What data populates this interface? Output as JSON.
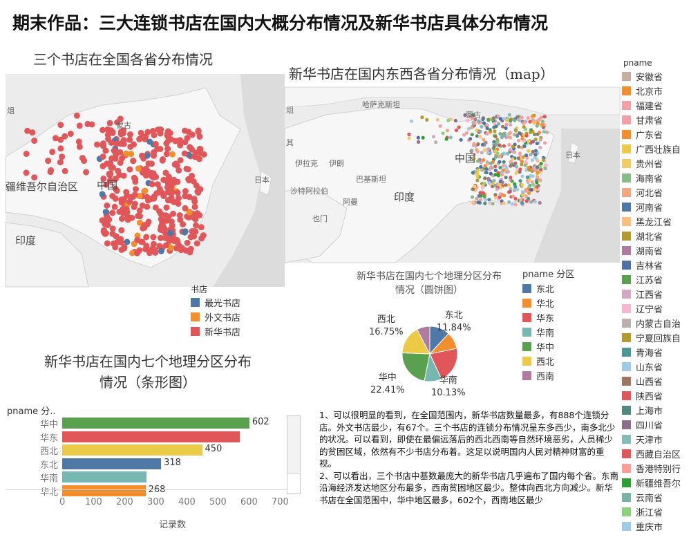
{
  "page": {
    "title": "期末作品：三大连锁书店在国内大概分布情况及新华书店具体分布情况"
  },
  "map1": {
    "title": "三个书店在全国各省分布情况",
    "labels": [
      "疆维吾尔自治区",
      "中国",
      "蒙古",
      "印度",
      "日本",
      "俎"
    ],
    "legend": {
      "title": "书店",
      "items": [
        {
          "label": "最光书店",
          "color": "#4e79a7"
        },
        {
          "label": "外文书店",
          "color": "#f28e2b"
        },
        {
          "label": "新华书店",
          "color": "#e15759"
        }
      ]
    }
  },
  "map2": {
    "title": "新华书店在国内东西各省分布情况（map）",
    "labels": [
      "哈萨克斯坦",
      "蒙古",
      "中国",
      "印度",
      "日本",
      "伊拉克",
      "伊朗",
      "巴基斯坦",
      "沙特阿拉伯",
      "也门",
      "阿曼",
      "其",
      "俎"
    ]
  },
  "province_legend": {
    "title": "pname",
    "items": [
      {
        "label": "安徽省",
        "color": "#c9aea0"
      },
      {
        "label": "北京市",
        "color": "#f28e2b"
      },
      {
        "label": "福建省",
        "color": "#f2a0a6"
      },
      {
        "label": "甘肃省",
        "color": "#f2a0a6"
      },
      {
        "label": "广东省",
        "color": "#f28e2b"
      },
      {
        "label": "广西壮族自",
        "color": "#edc948"
      },
      {
        "label": "贵州省",
        "color": "#f1ce63"
      },
      {
        "label": "海南省",
        "color": "#86bc86"
      },
      {
        "label": "河北省",
        "color": "#f4a582"
      },
      {
        "label": "河南省",
        "color": "#4e79a7"
      },
      {
        "label": "黑龙江省",
        "color": "#ffbe7d"
      },
      {
        "label": "湖北省",
        "color": "#b6992d"
      },
      {
        "label": "湖南省",
        "color": "#b07aa1"
      },
      {
        "label": "吉林省",
        "color": "#4e6fa7"
      },
      {
        "label": "江苏省",
        "color": "#59a14f"
      },
      {
        "label": "江西省",
        "color": "#d4a6c8"
      },
      {
        "label": "辽宁省",
        "color": "#f7b6d2"
      },
      {
        "label": "内蒙古自治",
        "color": "#bab0ac"
      },
      {
        "label": "宁夏回族自",
        "color": "#b6992d"
      },
      {
        "label": "青海省",
        "color": "#499894"
      },
      {
        "label": "山东省",
        "color": "#a0cbe8"
      },
      {
        "label": "山西省",
        "color": "#9d7660"
      },
      {
        "label": "陕西省",
        "color": "#e15759"
      },
      {
        "label": "上海市",
        "color": "#4e8a7e"
      },
      {
        "label": "四川省",
        "color": "#8c6d8c"
      },
      {
        "label": "天津市",
        "color": "#86bcb6"
      },
      {
        "label": "西藏自治区",
        "color": "#e15759"
      },
      {
        "label": "香港特别行",
        "color": "#ff9d9a"
      },
      {
        "label": "新疆维吾尔",
        "color": "#2ca02c"
      },
      {
        "label": "云南省",
        "color": "#79b2a6"
      },
      {
        "label": "浙江省",
        "color": "#8cd17d"
      },
      {
        "label": "重庆市",
        "color": "#a0cbe8"
      }
    ]
  },
  "pie": {
    "title_line1": "新华书店在国内七个地理分区分布",
    "title_line2": "情况（圆饼图）",
    "legend_title": "pname 分区",
    "labels": {
      "dongbei_name": "东北",
      "dongbei_pct": "11.84%",
      "xibei_name": "西北",
      "xibei_pct": "16.75%",
      "huazhong_name": "华中",
      "huazhong_pct": "22.41%",
      "huanan_name": "华南",
      "huanan_pct": "10.13%"
    }
  },
  "bar": {
    "title_line1": "新华书店在国内七个地理分区分布",
    "title_line2": "情况（条形图）",
    "header": "pname 分..",
    "xlabel": "记录数"
  },
  "chart_data": [
    {
      "type": "bar",
      "orientation": "horizontal",
      "title": "新华书店在国内七个地理分区分布情况（条形图）",
      "xlabel": "记录数",
      "ylabel": "pname 分..",
      "xlim": [
        0,
        700
      ],
      "xticks": [
        0,
        100,
        200,
        300,
        400,
        500,
        600,
        700
      ],
      "categories": [
        "华中",
        "华东",
        "西北",
        "东北",
        "华南",
        "华北"
      ],
      "values": [
        602,
        570,
        450,
        318,
        272,
        268
      ],
      "value_labels": [
        "602",
        "",
        "450",
        "318",
        "",
        "268"
      ],
      "colors": [
        "#59a14f",
        "#e15759",
        "#edc948",
        "#4e79a7",
        "#76b7b2",
        "#f28e2b"
      ]
    },
    {
      "type": "pie",
      "title": "新华书店在国内七个地理分区分布情况（圆饼图）",
      "legend": [
        "东北",
        "华北",
        "华东",
        "华南",
        "华中",
        "西北",
        "西南"
      ],
      "colors": [
        "#4e79a7",
        "#f28e2b",
        "#e15759",
        "#76b7b2",
        "#59a14f",
        "#edc948",
        "#b07aa1"
      ],
      "values": [
        11.84,
        9.98,
        21.26,
        10.13,
        22.41,
        16.75,
        7.63
      ],
      "labeled": [
        "东北",
        "华南",
        "华中",
        "西北"
      ]
    }
  ],
  "notes": {
    "p1": "1、可以很明显的看到，在全国范围内，新华书店数量最多，有888个连锁分店。外文书店最少，有67个。三个书店的连锁分布情况呈东多西少，南多北少的状况。可以看到，即使在最偏远落后的西北西南等自然环境恶劣，人员稀少的贫困区域，依然有不少书店分布着。这足以说明国内人民对精神财富的重视。",
    "p2": "2、可以看出，三个书店中基数最庞大的新华书店几乎遍布了国内每个省。东南沿海经济发达地区分布最多，西南贫困地区最少。整体向西北方向减少。新华书店在全国范围中，华中地区最多，602个，西南地区最少"
  }
}
